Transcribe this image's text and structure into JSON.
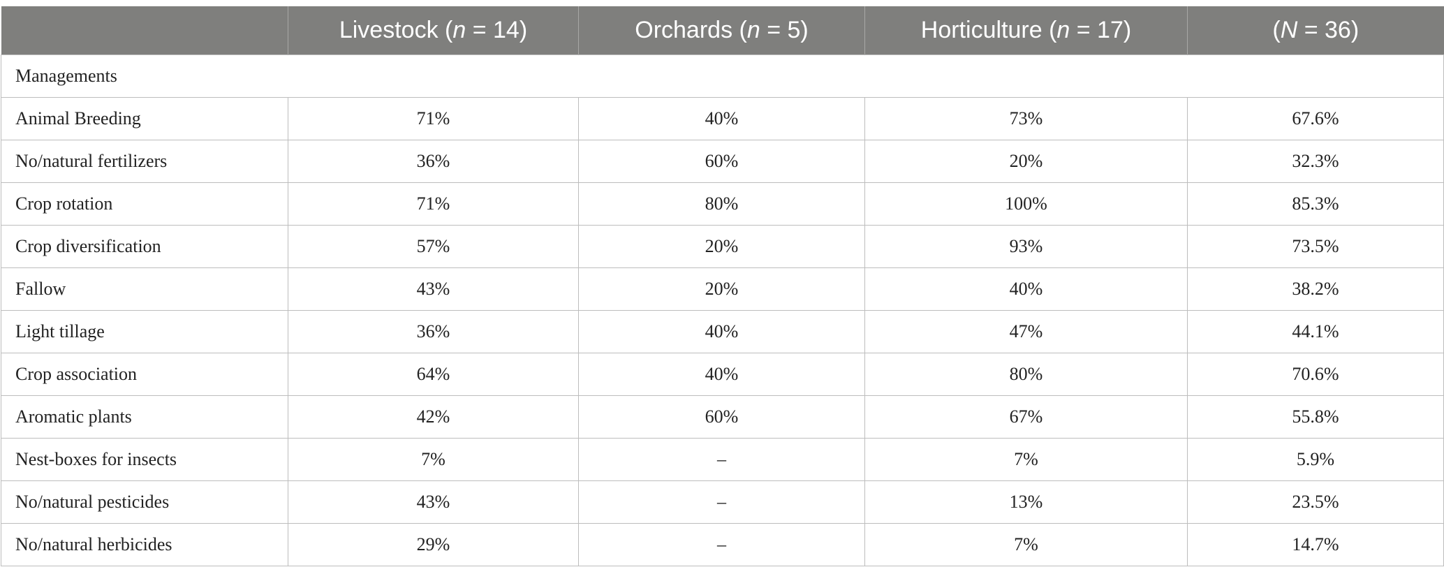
{
  "table": {
    "header": [
      {
        "text": ""
      },
      {
        "before": "Livestock (",
        "italic": "n",
        "after": " = 14)"
      },
      {
        "before": "Orchards (",
        "italic": "n",
        "after": " = 5)"
      },
      {
        "before": "Horticulture (",
        "italic": "n",
        "after": " = 17)"
      },
      {
        "before": "(",
        "italic": "N",
        "after": " = 36)"
      }
    ],
    "section": "Managements",
    "rows": [
      [
        "Animal Breeding",
        "71%",
        "40%",
        "73%",
        "67.6%"
      ],
      [
        "No/natural fertilizers",
        "36%",
        "60%",
        "20%",
        "32.3%"
      ],
      [
        "Crop rotation",
        "71%",
        "80%",
        "100%",
        "85.3%"
      ],
      [
        "Crop diversification",
        "57%",
        "20%",
        "93%",
        "73.5%"
      ],
      [
        "Fallow",
        "43%",
        "20%",
        "40%",
        "38.2%"
      ],
      [
        "Light tillage",
        "36%",
        "40%",
        "47%",
        "44.1%"
      ],
      [
        "Crop association",
        "64%",
        "40%",
        "80%",
        "70.6%"
      ],
      [
        "Aromatic plants",
        "42%",
        "60%",
        "67%",
        "55.8%"
      ],
      [
        "Nest-boxes for insects",
        "7%",
        "–",
        "7%",
        "5.9%"
      ],
      [
        "No/natural pesticides",
        "43%",
        "–",
        "13%",
        "23.5%"
      ],
      [
        "No/natural herbicides",
        "29%",
        "–",
        "7%",
        "14.7%"
      ]
    ]
  }
}
